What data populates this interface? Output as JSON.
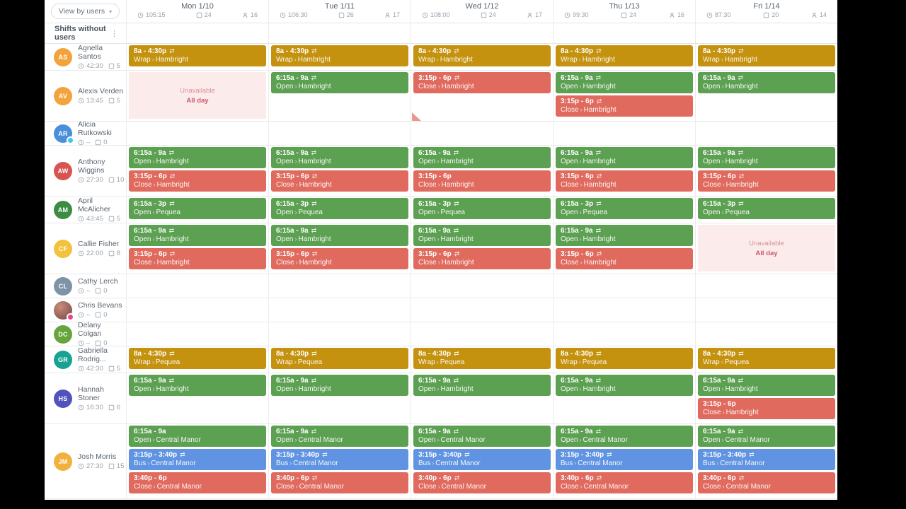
{
  "toolbar": {
    "view_by_label": "View by users"
  },
  "sidebar": {
    "shifts_without_users_label": "Shifts without users"
  },
  "icons": {
    "kebab": "⋮",
    "chevron_down": "▾",
    "swap": "⇄",
    "label_separator": "›"
  },
  "colors": {
    "green": "#5CA052",
    "red": "#E06A5E",
    "gold": "#C4920F",
    "blue": "#6094E2",
    "unavailable_bg": "#FBECEB",
    "unavailable_text": "#C9566C"
  },
  "unavailable": {
    "line1": "Unavailable",
    "line2": "All day"
  },
  "days": [
    {
      "label": "Mon 1/10",
      "hours": "105:15",
      "shifts": "24",
      "people": "16"
    },
    {
      "label": "Tue 1/11",
      "hours": "106:30",
      "shifts": "26",
      "people": "17"
    },
    {
      "label": "Wed 1/12",
      "hours": "108:00",
      "shifts": "24",
      "people": "17"
    },
    {
      "label": "Thu 1/13",
      "hours": "99:30",
      "shifts": "24",
      "people": "16"
    },
    {
      "label": "Fri 1/14",
      "hours": "87:30",
      "shifts": "20",
      "people": "14"
    }
  ],
  "users": [
    {
      "name": "Agnella Santos",
      "initials": "AS",
      "avatar_color": "#F2A33C",
      "hours": "42:30",
      "shift_count": "5",
      "days": [
        [
          {
            "time": "8a - 4:30p",
            "swap": true,
            "role": "Wrap",
            "location": "Hambright",
            "color": "gold"
          }
        ],
        [
          {
            "time": "8a - 4:30p",
            "swap": true,
            "role": "Wrap",
            "location": "Hambright",
            "color": "gold"
          }
        ],
        [
          {
            "time": "8a - 4:30p",
            "swap": true,
            "role": "Wrap",
            "location": "Hambright",
            "color": "gold"
          }
        ],
        [
          {
            "time": "8a - 4:30p",
            "swap": true,
            "role": "Wrap",
            "location": "Hambright",
            "color": "gold"
          }
        ],
        [
          {
            "time": "8a - 4:30p",
            "swap": true,
            "role": "Wrap",
            "location": "Hambright",
            "color": "gold"
          }
        ]
      ]
    },
    {
      "name": "Alexis Verden",
      "initials": "AV",
      "avatar_color": "#F2A33C",
      "hours": "13:45",
      "shift_count": "5",
      "corner_days": [
        2
      ],
      "days": [
        [
          {
            "unavailable": true
          }
        ],
        [
          {
            "time": "6:15a - 9a",
            "swap": true,
            "role": "Open",
            "location": "Hambright",
            "color": "green"
          }
        ],
        [
          {
            "time": "3:15p - 6p",
            "swap": true,
            "role": "Close",
            "location": "Hambright",
            "color": "red"
          }
        ],
        [
          {
            "time": "6:15a - 9a",
            "swap": true,
            "role": "Open",
            "location": "Hambright",
            "color": "green"
          },
          {
            "time": "3:15p - 6p",
            "swap": true,
            "role": "Close",
            "location": "Hambright",
            "color": "red"
          }
        ],
        [
          {
            "time": "6:15a - 9a",
            "swap": true,
            "role": "Open",
            "location": "Hambright",
            "color": "green"
          }
        ]
      ]
    },
    {
      "name": "Alicia Rutkowski",
      "initials": "AR",
      "avatar_color": "#4A8FD9",
      "badge_color": "#45C5E8",
      "hours": "–",
      "shift_count": "0",
      "days": [
        [],
        [],
        [],
        [],
        []
      ]
    },
    {
      "name": "Anthony Wiggins",
      "initials": "AW",
      "avatar_color": "#D85450",
      "hours": "27:30",
      "shift_count": "10",
      "days": [
        [
          {
            "time": "6:15a - 9a",
            "swap": true,
            "role": "Open",
            "location": "Hambright",
            "color": "green"
          },
          {
            "time": "3:15p - 6p",
            "swap": true,
            "role": "Close",
            "location": "Hambright",
            "color": "red"
          }
        ],
        [
          {
            "time": "6:15a - 9a",
            "swap": true,
            "role": "Open",
            "location": "Hambright",
            "color": "green"
          },
          {
            "time": "3:15p - 6p",
            "swap": true,
            "role": "Close",
            "location": "Hambright",
            "color": "red"
          }
        ],
        [
          {
            "time": "6:15a - 9a",
            "swap": true,
            "role": "Open",
            "location": "Hambright",
            "color": "green"
          },
          {
            "time": "3:15p - 6p",
            "swap": false,
            "role": "Close",
            "location": "Hambright",
            "color": "red"
          }
        ],
        [
          {
            "time": "6:15a - 9a",
            "swap": true,
            "role": "Open",
            "location": "Hambright",
            "color": "green"
          },
          {
            "time": "3:15p - 6p",
            "swap": true,
            "role": "Close",
            "location": "Hambright",
            "color": "red"
          }
        ],
        [
          {
            "time": "6:15a - 9a",
            "swap": true,
            "role": "Open",
            "location": "Hambright",
            "color": "green"
          },
          {
            "time": "3:15p - 6p",
            "swap": true,
            "role": "Close",
            "location": "Hambright",
            "color": "red"
          }
        ]
      ]
    },
    {
      "name": "April McAlicher",
      "initials": "AM",
      "avatar_color": "#3C8C44",
      "hours": "43:45",
      "shift_count": "5",
      "days": [
        [
          {
            "time": "6:15a - 3p",
            "swap": true,
            "role": "Open",
            "location": "Pequea",
            "color": "green"
          }
        ],
        [
          {
            "time": "6:15a - 3p",
            "swap": true,
            "role": "Open",
            "location": "Pequea",
            "color": "green"
          }
        ],
        [
          {
            "time": "6:15a - 3p",
            "swap": true,
            "role": "Open",
            "location": "Pequea",
            "color": "green"
          }
        ],
        [
          {
            "time": "6:15a - 3p",
            "swap": true,
            "role": "Open",
            "location": "Pequea",
            "color": "green"
          }
        ],
        [
          {
            "time": "6:15a - 3p",
            "swap": true,
            "role": "Open",
            "location": "Pequea",
            "color": "green"
          }
        ]
      ]
    },
    {
      "name": "Callie Fisher",
      "initials": "CF",
      "avatar_color": "#F2C23C",
      "hours": "22:00",
      "shift_count": "8",
      "days": [
        [
          {
            "time": "6:15a - 9a",
            "swap": true,
            "role": "Open",
            "location": "Hambright",
            "color": "green"
          },
          {
            "time": "3:15p - 6p",
            "swap": true,
            "role": "Close",
            "location": "Hambright",
            "color": "red"
          }
        ],
        [
          {
            "time": "6:15a - 9a",
            "swap": true,
            "role": "Open",
            "location": "Hambright",
            "color": "green"
          },
          {
            "time": "3:15p - 6p",
            "swap": true,
            "role": "Close",
            "location": "Hambright",
            "color": "red"
          }
        ],
        [
          {
            "time": "6:15a - 9a",
            "swap": true,
            "role": "Open",
            "location": "Hambright",
            "color": "green"
          },
          {
            "time": "3:15p - 6p",
            "swap": true,
            "role": "Close",
            "location": "Hambright",
            "color": "red"
          }
        ],
        [
          {
            "time": "6:15a - 9a",
            "swap": true,
            "role": "Open",
            "location": "Hambright",
            "color": "green"
          },
          {
            "time": "3:15p - 6p",
            "swap": true,
            "role": "Close",
            "location": "Hambright",
            "color": "red"
          }
        ],
        [
          {
            "unavailable": true
          }
        ]
      ]
    },
    {
      "name": "Cathy Lerch",
      "initials": "CL",
      "avatar_color": "#7D93A6",
      "hours": "–",
      "shift_count": "0",
      "days": [
        [],
        [],
        [],
        [],
        []
      ]
    },
    {
      "name": "Chris Bevans",
      "initials": "",
      "photo": true,
      "badge_color": "#E8468C",
      "hours": "–",
      "shift_count": "0",
      "days": [
        [],
        [],
        [],
        [],
        []
      ]
    },
    {
      "name": "Delany Colgan",
      "initials": "DC",
      "avatar_color": "#67A43C",
      "hours": "–",
      "shift_count": "0",
      "days": [
        [],
        [],
        [],
        [],
        []
      ]
    },
    {
      "name": "Gabriella Rodrig...",
      "initials": "GR",
      "avatar_color": "#17A294",
      "hours": "42:30",
      "shift_count": "5",
      "days": [
        [
          {
            "time": "8a - 4:30p",
            "swap": true,
            "role": "Wrap",
            "location": "Pequea",
            "color": "gold"
          }
        ],
        [
          {
            "time": "8a - 4:30p",
            "swap": true,
            "role": "Wrap",
            "location": "Pequea",
            "color": "gold"
          }
        ],
        [
          {
            "time": "8a - 4:30p",
            "swap": true,
            "role": "Wrap",
            "location": "Pequea",
            "color": "gold"
          }
        ],
        [
          {
            "time": "8a - 4:30p",
            "swap": true,
            "role": "Wrap",
            "location": "Pequea",
            "color": "gold"
          }
        ],
        [
          {
            "time": "8a - 4:30p",
            "swap": true,
            "role": "Wrap",
            "location": "Pequea",
            "color": "gold"
          }
        ]
      ]
    },
    {
      "name": "Hannah Stoner",
      "initials": "HS",
      "avatar_color": "#5153BD",
      "hours": "16:30",
      "shift_count": "6",
      "days": [
        [
          {
            "time": "6:15a - 9a",
            "swap": true,
            "role": "Open",
            "location": "Hambright",
            "color": "green"
          }
        ],
        [
          {
            "time": "6:15a - 9a",
            "swap": true,
            "role": "Open",
            "location": "Hambright",
            "color": "green"
          }
        ],
        [
          {
            "time": "6:15a - 9a",
            "swap": true,
            "role": "Open",
            "location": "Hambright",
            "color": "green"
          }
        ],
        [
          {
            "time": "6:15a - 9a",
            "swap": true,
            "role": "Open",
            "location": "Hambright",
            "color": "green"
          }
        ],
        [
          {
            "time": "6:15a - 9a",
            "swap": true,
            "role": "Open",
            "location": "Hambright",
            "color": "green"
          },
          {
            "time": "3:15p - 6p",
            "swap": false,
            "role": "Close",
            "location": "Hambright",
            "color": "red"
          }
        ]
      ]
    },
    {
      "name": "Josh Morris",
      "initials": "JM",
      "avatar_color": "#F2B13C",
      "hours": "27:30",
      "shift_count": "15",
      "days": [
        [
          {
            "time": "6:15a - 9a",
            "swap": false,
            "role": "Open",
            "location": "Central Manor",
            "color": "green"
          },
          {
            "time": "3:15p - 3:40p",
            "swap": true,
            "role": "Bus",
            "location": "Central Manor",
            "color": "blue"
          },
          {
            "time": "3:40p - 6p",
            "swap": false,
            "role": "Close",
            "location": "Central Manor",
            "color": "red"
          }
        ],
        [
          {
            "time": "6:15a - 9a",
            "swap": true,
            "role": "Open",
            "location": "Central Manor",
            "color": "green"
          },
          {
            "time": "3:15p - 3:40p",
            "swap": true,
            "role": "Bus",
            "location": "Central Manor",
            "color": "blue"
          },
          {
            "time": "3:40p - 6p",
            "swap": true,
            "role": "Close",
            "location": "Central Manor",
            "color": "red"
          }
        ],
        [
          {
            "time": "6:15a - 9a",
            "swap": true,
            "role": "Open",
            "location": "Central Manor",
            "color": "green"
          },
          {
            "time": "3:15p - 3:40p",
            "swap": true,
            "role": "Bus",
            "location": "Central Manor",
            "color": "blue"
          },
          {
            "time": "3:40p - 6p",
            "swap": true,
            "role": "Close",
            "location": "Central Manor",
            "color": "red"
          }
        ],
        [
          {
            "time": "6:15a - 9a",
            "swap": true,
            "role": "Open",
            "location": "Central Manor",
            "color": "green"
          },
          {
            "time": "3:15p - 3:40p",
            "swap": true,
            "role": "Bus",
            "location": "Central Manor",
            "color": "blue"
          },
          {
            "time": "3:40p - 6p",
            "swap": true,
            "role": "Close",
            "location": "Central Manor",
            "color": "red"
          }
        ],
        [
          {
            "time": "6:15a - 9a",
            "swap": true,
            "role": "Open",
            "location": "Central Manor",
            "color": "green"
          },
          {
            "time": "3:15p - 3:40p",
            "swap": true,
            "role": "Bus",
            "location": "Central Manor",
            "color": "blue"
          },
          {
            "time": "3:40p - 6p",
            "swap": true,
            "role": "Close",
            "location": "Central Manor",
            "color": "red"
          }
        ]
      ]
    }
  ]
}
